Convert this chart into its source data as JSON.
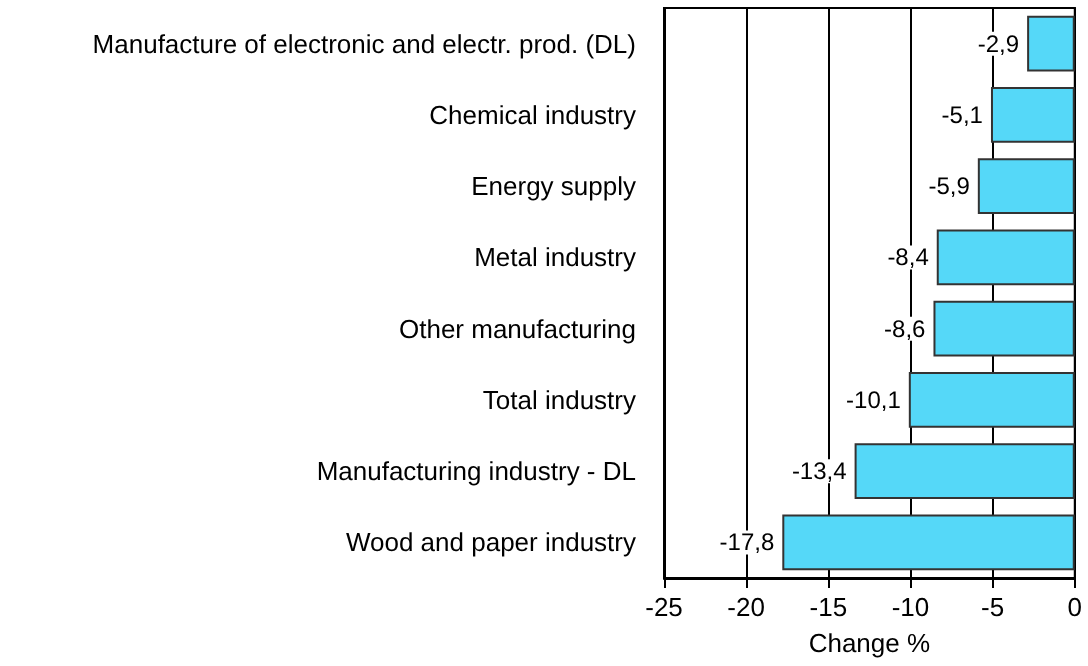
{
  "chart_data": {
    "type": "bar",
    "orientation": "horizontal",
    "xlabel": "Change %",
    "categories": [
      "Manufacture of electronic and electr. prod. (DL)",
      "Chemical industry",
      "Energy supply",
      "Metal industry",
      "Other manufacturing",
      "Total industry",
      "Manufacturing industry - DL",
      "Wood and paper industry"
    ],
    "values": [
      -2.9,
      -5.1,
      -5.9,
      -8.4,
      -8.6,
      -10.1,
      -13.4,
      -17.8
    ],
    "value_labels": [
      "-2,9",
      "-5,1",
      "-5,9",
      "-8,4",
      "-8,6",
      "-10,1",
      "-13,4",
      "-17,8"
    ],
    "color": "#55d8f8",
    "xlim": [
      -25,
      0
    ],
    "xticks": [
      -25,
      -20,
      -15,
      -10,
      -5,
      0
    ],
    "grid": "x"
  }
}
